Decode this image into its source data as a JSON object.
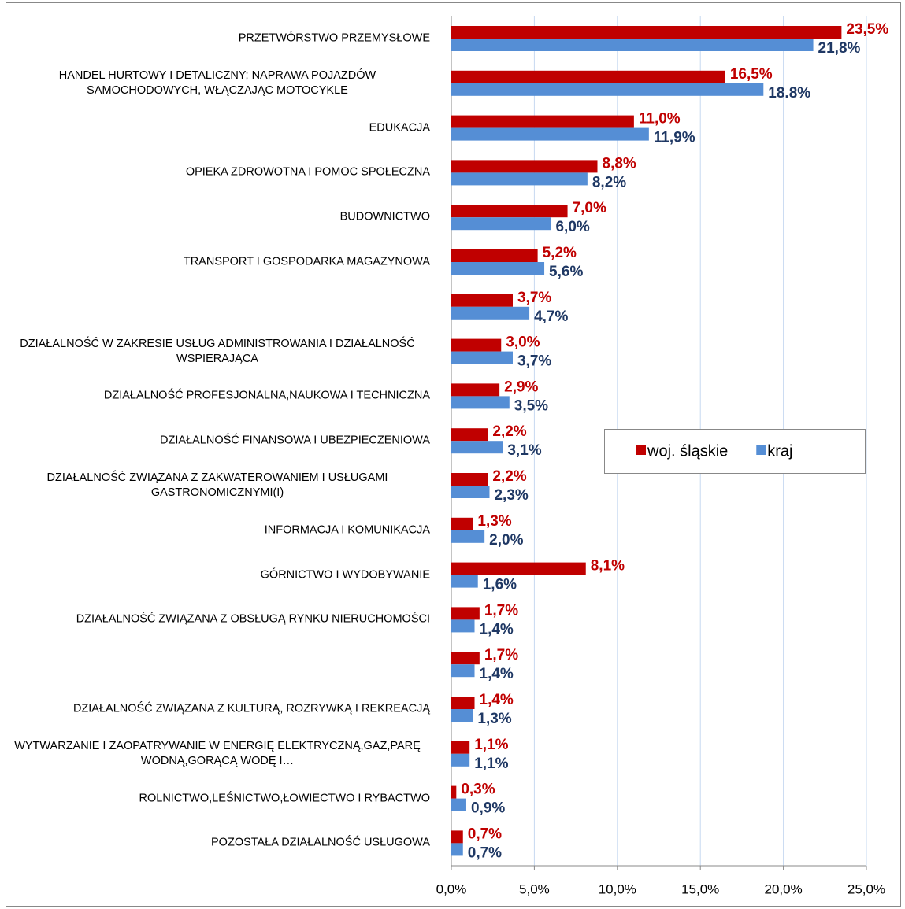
{
  "chart_data": {
    "type": "hbar",
    "categories": [
      "PRZETWÓRSTWO PRZEMYSŁOWE",
      "HANDEL HURTOWY I DETALICZNY; NAPRAWA POJAZDÓW SAMOCHODOWYCH, WŁĄCZAJĄC MOTOCYKLE",
      "EDUKACJA",
      "OPIEKA ZDROWOTNA I POMOC SPOŁECZNA",
      "BUDOWNICTWO",
      "TRANSPORT I GOSPODARKA MAGAZYNOWA",
      null,
      "DZIAŁALNOŚĆ W ZAKRESIE USŁUG ADMINISTROWANIA I DZIAŁALNOŚĆ WSPIERAJĄCA",
      "DZIAŁALNOŚĆ PROFESJONALNA,NAUKOWA I TECHNICZNA",
      "DZIAŁALNOŚĆ FINANSOWA I UBEZPIECZENIOWA",
      "DZIAŁALNOŚĆ ZWIĄZANA Z ZAKWATEROWANIEM I USŁUGAMI GASTRONOMICZNYMI(I)",
      "INFORMACJA I KOMUNIKACJA",
      "GÓRNICTWO I WYDOBYWANIE",
      "DZIAŁALNOŚĆ ZWIĄZANA Z OBSŁUGĄ  RYNKU NIERUCHOMOŚCI",
      null,
      "DZIAŁALNOŚĆ ZWIĄZANA Z KULTURĄ, ROZRYWKĄ I REKREACJĄ",
      "WYTWARZANIE I ZAOPATRYWANIE W ENERGIĘ ELEKTRYCZNĄ,GAZ,PARĘ WODNĄ,GORĄCĄ WODĘ I…",
      "ROLNICTWO,LEŚNICTWO,ŁOWIECTWO I RYBACTWO",
      "POZOSTAŁA DZIAŁALNOŚĆ USŁUGOWA"
    ],
    "series": [
      {
        "name": "woj. śląskie",
        "color": "#c00000",
        "label_color": "#c00000",
        "values": [
          23.5,
          16.5,
          11.0,
          8.8,
          7.0,
          5.2,
          3.7,
          3.0,
          2.9,
          2.2,
          2.2,
          1.3,
          8.1,
          1.7,
          1.7,
          1.4,
          1.1,
          0.3,
          0.7
        ],
        "value_labels": [
          "23,5%",
          "16,5%",
          "11,0%",
          "8,8%",
          "7,0%",
          "5,2%",
          "3,7%",
          "3,0%",
          "2,9%",
          "2,2%",
          "2,2%",
          "1,3%",
          "8,1%",
          "1,7%",
          "1,7%",
          "1,4%",
          "1,1%",
          "0,3%",
          "0,7%"
        ]
      },
      {
        "name": "kraj",
        "color": "#558ed5",
        "label_color": "#1f3864",
        "values": [
          21.8,
          18.8,
          11.9,
          8.2,
          6.0,
          5.6,
          4.7,
          3.7,
          3.5,
          3.1,
          2.3,
          2.0,
          1.6,
          1.4,
          1.4,
          1.3,
          1.1,
          0.9,
          0.7
        ],
        "value_labels": [
          "21,8%",
          "18.8%",
          "11,9%",
          "8,2%",
          "6,0%",
          "5,6%",
          "4,7%",
          "3,7%",
          "3,5%",
          "3,1%",
          "2,3%",
          "2,0%",
          "1,6%",
          "1,4%",
          "1,4%",
          "1,3%",
          "1,1%",
          "0,9%",
          "0,7%"
        ]
      }
    ],
    "xlim": [
      0,
      25
    ],
    "xticks": [
      {
        "value": 0,
        "label": "0,0%"
      },
      {
        "value": 5,
        "label": "5,0%"
      },
      {
        "value": 10,
        "label": "10,0%"
      },
      {
        "value": 15,
        "label": "15,0%"
      },
      {
        "value": 20,
        "label": "20,0%"
      },
      {
        "value": 25,
        "label": "25,0%"
      }
    ],
    "grid": true,
    "legend": "right"
  }
}
